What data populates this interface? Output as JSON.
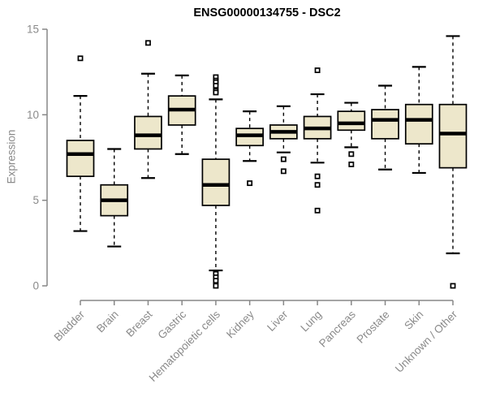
{
  "header": {
    "title": "ENSG00000134755 - DSC2"
  },
  "style": {
    "background": "#FFFFFF",
    "box_fill": "#EDE7CB",
    "box_border": "#000000",
    "median_color": "#000000",
    "outlier_fill": "#FFFFFF",
    "axis_color": "#878787",
    "tick_label_color": "#8A8A8A",
    "title_color": "#000000"
  },
  "chart_data": {
    "type": "boxplot",
    "title": "ENSG00000134755 - DSC2",
    "xlabel": "",
    "ylabel": "Expression",
    "ylim": [
      0,
      15
    ],
    "yticks": [
      0,
      5,
      10,
      15
    ],
    "grid": false,
    "legend": "none",
    "x_tick_rotation": -45,
    "categories": [
      "Bladder",
      "Brain",
      "Breast",
      "Gastric",
      "Hematopoietic cells",
      "Kidney",
      "Liver",
      "Lung",
      "Pancreas",
      "Prostate",
      "Skin",
      "Unknown / Other"
    ],
    "series": [
      {
        "name": "Bladder",
        "low": 3.2,
        "q1": 6.4,
        "median": 7.7,
        "q3": 8.5,
        "high": 11.1,
        "outliers": [
          13.3
        ]
      },
      {
        "name": "Brain",
        "low": 2.3,
        "q1": 4.1,
        "median": 5.0,
        "q3": 5.9,
        "high": 8.0,
        "outliers": []
      },
      {
        "name": "Breast",
        "low": 6.3,
        "q1": 8.0,
        "median": 8.8,
        "q3": 9.9,
        "high": 12.4,
        "outliers": [
          14.2
        ]
      },
      {
        "name": "Gastric",
        "low": 7.7,
        "q1": 9.4,
        "median": 10.3,
        "q3": 11.1,
        "high": 12.3,
        "outliers": []
      },
      {
        "name": "Hematopoietic cells",
        "low": 0.9,
        "q1": 4.7,
        "median": 5.9,
        "q3": 7.4,
        "high": 10.9,
        "outliers": [
          12.2,
          12.0,
          11.9,
          11.7,
          11.4,
          11.3,
          0.7,
          0.5,
          0.3,
          0.0
        ]
      },
      {
        "name": "Kidney",
        "low": 7.3,
        "q1": 8.2,
        "median": 8.8,
        "q3": 9.2,
        "high": 10.2,
        "outliers": [
          6.0
        ]
      },
      {
        "name": "Liver",
        "low": 7.8,
        "q1": 8.6,
        "median": 9.0,
        "q3": 9.4,
        "high": 10.5,
        "outliers": [
          7.4,
          6.7
        ]
      },
      {
        "name": "Lung",
        "low": 7.2,
        "q1": 8.6,
        "median": 9.2,
        "q3": 9.9,
        "high": 11.2,
        "outliers": [
          12.6,
          6.4,
          5.9,
          4.4
        ]
      },
      {
        "name": "Pancreas",
        "low": 8.1,
        "q1": 9.1,
        "median": 9.5,
        "q3": 10.2,
        "high": 10.7,
        "outliers": [
          7.7,
          7.1
        ]
      },
      {
        "name": "Prostate",
        "low": 6.8,
        "q1": 8.6,
        "median": 9.7,
        "q3": 10.3,
        "high": 11.7,
        "outliers": []
      },
      {
        "name": "Skin",
        "low": 6.6,
        "q1": 8.3,
        "median": 9.7,
        "q3": 10.6,
        "high": 12.8,
        "outliers": []
      },
      {
        "name": "Unknown / Other",
        "low": 1.9,
        "q1": 6.9,
        "median": 8.9,
        "q3": 10.6,
        "high": 14.6,
        "outliers": [
          0.0
        ]
      }
    ]
  }
}
